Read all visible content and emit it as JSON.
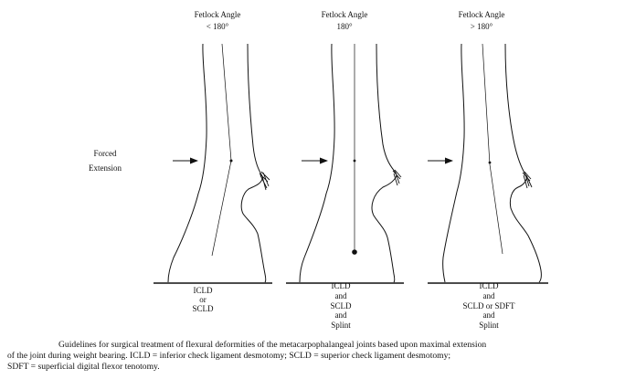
{
  "panels": [
    {
      "angle_title": "Fetlock Angle",
      "angle_value": "< 180°",
      "treatment": [
        "ICLD",
        "or",
        "SCLD"
      ]
    },
    {
      "angle_title": "Fetlock Angle",
      "angle_value": "180°",
      "treatment": [
        "ICLD",
        "and",
        "SCLD",
        "and",
        "Splint"
      ]
    },
    {
      "angle_title": "Fetlock Angle",
      "angle_value": "> 180°",
      "treatment": [
        "ICLD",
        "and",
        "SCLD or SDFT",
        "and",
        "Splint"
      ]
    }
  ],
  "force_label": [
    "Forced",
    "Extension"
  ],
  "caption": [
    "Guidelines for surgical treatment of flexural deformities of the metacarpophalangeal joints based upon maximal extension",
    "of the joint during weight bearing.  ICLD = inferior check ligament desmotomy; SCLD = superior check ligament desmotomy;",
    "SDFT = superficial digital flexor tenotomy."
  ],
  "colors": {
    "ink": "#111111",
    "background": "#ffffff"
  }
}
